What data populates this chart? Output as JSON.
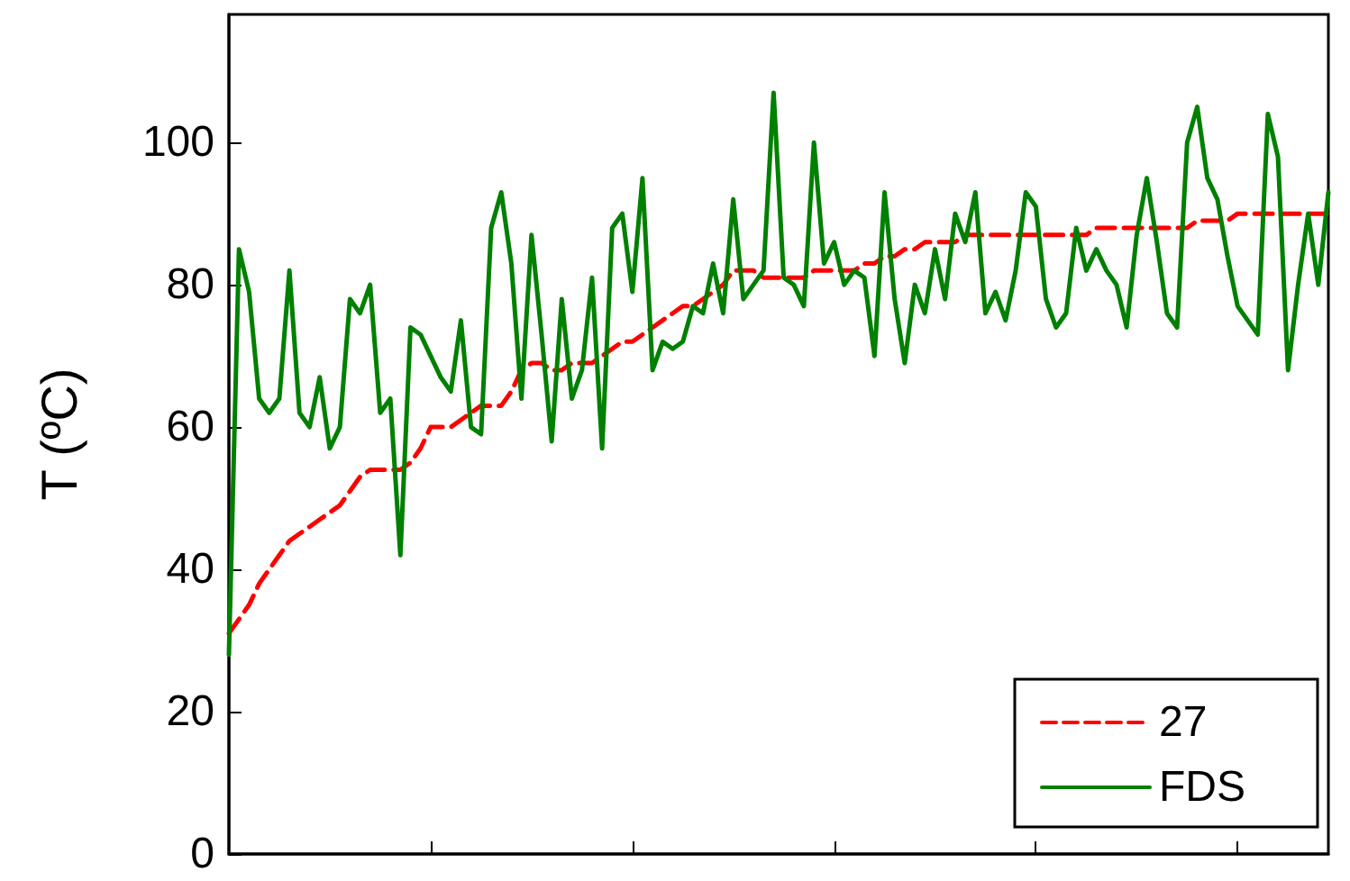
{
  "chart_data": {
    "type": "line",
    "ylabel": "T (ºC)",
    "categories": [
      null,
      null,
      null,
      null,
      null,
      null,
      null,
      null,
      null,
      null,
      null,
      null,
      null,
      null,
      null,
      null,
      null,
      null,
      null,
      null,
      null,
      null,
      null,
      null,
      null,
      null,
      null,
      null,
      null,
      null,
      null,
      null,
      null,
      null,
      null,
      null,
      null,
      null,
      null,
      null,
      null,
      null,
      null,
      null,
      null,
      null,
      null,
      null,
      null,
      null,
      null,
      null,
      null,
      null,
      null,
      null,
      null,
      null,
      null,
      null,
      null,
      null,
      null,
      null,
      null,
      null,
      null,
      null,
      null,
      null,
      null,
      null,
      null,
      null,
      null,
      null,
      null,
      null,
      null,
      null,
      null,
      null,
      null,
      null,
      null,
      null,
      null,
      null,
      null,
      null,
      null,
      null,
      null,
      null,
      null,
      null,
      null,
      null,
      null,
      null,
      null,
      null,
      null,
      null,
      null,
      null,
      null,
      null,
      null,
      null
    ],
    "series": [
      {
        "name": "27",
        "color": "#ff0000",
        "line_style": "dashed",
        "values": [
          31,
          33,
          35,
          38,
          40,
          42,
          44,
          45,
          46,
          47,
          48,
          49,
          51,
          53,
          54,
          54,
          54,
          54,
          55,
          57,
          60,
          60,
          60,
          61,
          62,
          63,
          63,
          63,
          65,
          68,
          69,
          69,
          68,
          68,
          69,
          69,
          69,
          70,
          71,
          72,
          72,
          73,
          74,
          75,
          76,
          77,
          77,
          78,
          79,
          80,
          82,
          82,
          82,
          81,
          81,
          81,
          81,
          81,
          82,
          82,
          82,
          82,
          82,
          83,
          83,
          84,
          84,
          85,
          85,
          86,
          86,
          86,
          86,
          87,
          87,
          87,
          87,
          87,
          87,
          87,
          87,
          87,
          87,
          87,
          87,
          87,
          88,
          88,
          88,
          88,
          88,
          88,
          88,
          88,
          88,
          88,
          89,
          89,
          89,
          89,
          90,
          90,
          90,
          90,
          90,
          90,
          90,
          90,
          90,
          90
        ]
      },
      {
        "name": "FDS",
        "color": "#008000",
        "line_style": "solid",
        "values": [
          28,
          85,
          79,
          64,
          62,
          64,
          82,
          62,
          60,
          67,
          57,
          60,
          78,
          76,
          80,
          62,
          64,
          42,
          74,
          73,
          70,
          67,
          65,
          75,
          60,
          59,
          88,
          93,
          83,
          64,
          87,
          73,
          58,
          78,
          64,
          68,
          81,
          57,
          88,
          90,
          79,
          95,
          68,
          72,
          71,
          72,
          77,
          76,
          83,
          76,
          92,
          78,
          80,
          82,
          107,
          81,
          80,
          77,
          100,
          83,
          86,
          80,
          82,
          81,
          70,
          93,
          78,
          69,
          80,
          76,
          85,
          78,
          90,
          86,
          93,
          76,
          79,
          75,
          82,
          93,
          91,
          78,
          74,
          76,
          88,
          82,
          85,
          82,
          80,
          74,
          87,
          95,
          86,
          76,
          74,
          100,
          105,
          95,
          92,
          84,
          77,
          75,
          73,
          104,
          98,
          68,
          80,
          90,
          80,
          93
        ]
      }
    ],
    "ylim": [
      0,
      118
    ],
    "yticks": [
      0,
      20,
      40,
      60,
      80,
      100
    ],
    "legend": "bottom right",
    "grid": false,
    "tick_labels": "y"
  }
}
